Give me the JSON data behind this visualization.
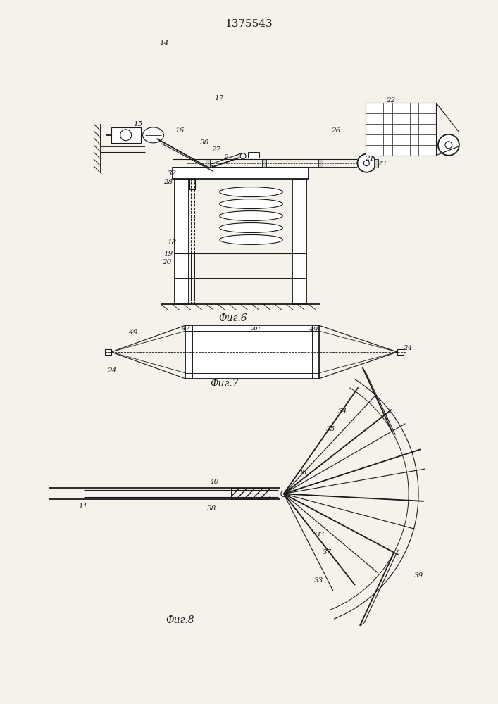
{
  "title": "1375543",
  "bg_color": "#f5f2ec",
  "line_color": "#1a1a1a",
  "fig6_label": "Фиг.6",
  "fig7_label": "Фиг.7",
  "fig8_label": "Фиг.8"
}
